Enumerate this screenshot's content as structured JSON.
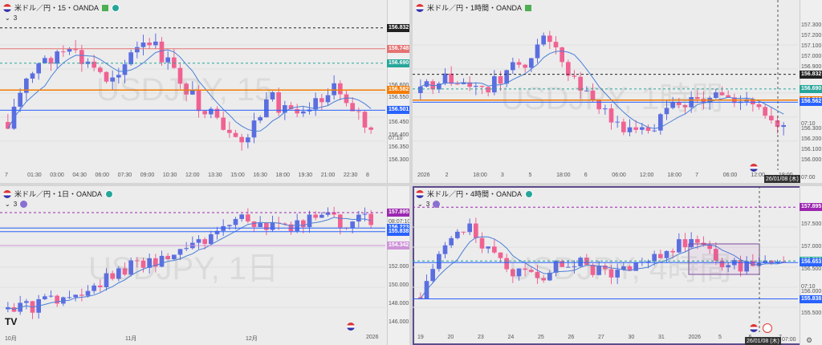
{
  "panels": {
    "tl": {
      "title": "米ドル／円・15・OANDA",
      "indicator": "3",
      "watermark": "USDJPY, 15",
      "y_ticks": [
        "156.832",
        "156.748",
        "156.690",
        "156.600",
        "156.582",
        "156.550",
        "156.501",
        "156.450",
        "156.400",
        "07:10",
        "156.350",
        "156.300"
      ],
      "x_ticks": [
        "7",
        "01:30",
        "03:00",
        "04:30",
        "06:00",
        "07:30",
        "09:00",
        "10:30",
        "12:00",
        "13:30",
        "15:00",
        "16:30",
        "18:00",
        "19:30",
        "21:00",
        "22:30",
        "8"
      ],
      "tags": [
        {
          "text": "156.832",
          "color": "#222222"
        },
        {
          "text": "156.748",
          "color": "#e57373"
        },
        {
          "text": "156.690",
          "color": "#26a69a"
        },
        {
          "text": "156.582",
          "color": "#f57c00"
        },
        {
          "text": "156.501",
          "color": "#2962ff"
        }
      ]
    },
    "tr": {
      "title": "米ドル／円・1時間・OANDA",
      "watermark": "USDJPY, 1時間",
      "y_ticks": [
        "157.300",
        "157.200",
        "157.100",
        "157.000",
        "156.900",
        "156.832",
        "156.700",
        "156.690",
        "156.582",
        "156.562",
        "07:10",
        "156.300",
        "156.200",
        "156.100",
        "156.000"
      ],
      "x_ticks": [
        "2026",
        "2",
        "18:00",
        "3",
        "5",
        "18:00",
        "6",
        "06:00",
        "12:00",
        "18:00",
        "7",
        "06:00",
        "12:00",
        "18:00"
      ],
      "date_label": "26/01/08 (木)",
      "time_label": "07:00",
      "tags": [
        {
          "text": "156.832",
          "color": "#222222"
        },
        {
          "text": "156.690",
          "color": "#26a69a"
        },
        {
          "text": "156.582",
          "color": "#f57c00"
        },
        {
          "text": "156.562",
          "color": "#2962ff"
        }
      ]
    },
    "bl": {
      "title": "米ドル／円・1日・OANDA",
      "indicator": "3",
      "watermark": "USDJPY, 1日",
      "y_ticks": [
        "157.895",
        "08:07:10",
        "156.223",
        "155.838",
        "154.342",
        "152.000",
        "150.000",
        "148.000",
        "146.000"
      ],
      "x_ticks": [
        "10月",
        "11月",
        "12月",
        "2026"
      ],
      "tags": [
        {
          "text": "157.895",
          "color": "#9c27b0"
        },
        {
          "text": "156.223",
          "color": "#2962ff"
        },
        {
          "text": "155.838",
          "color": "#2962ff"
        },
        {
          "text": "154.342",
          "color": "#ce93d8"
        }
      ]
    },
    "br": {
      "title": "米ドル／円・4時間・OANDA",
      "indicator": "3",
      "watermark": "USDJPY, 4時間",
      "y_ticks": [
        "157.895",
        "157.500",
        "157.000",
        "156.690",
        "156.653",
        "156.500",
        "07:10",
        "156.000",
        "155.838",
        "155.500"
      ],
      "x_ticks": [
        "19",
        "20",
        "23",
        "24",
        "25",
        "26",
        "27",
        "30",
        "31",
        "2026",
        "5",
        "6",
        "7"
      ],
      "date_label": "26/01/08 (木)",
      "time_label": "07:00",
      "tags": [
        {
          "text": "157.895",
          "color": "#9c27b0"
        },
        {
          "text": "156.690",
          "color": "#26a69a"
        },
        {
          "text": "156.653",
          "color": "#2962ff"
        },
        {
          "text": "155.838",
          "color": "#2962ff"
        }
      ]
    }
  },
  "chart_data": [
    {
      "type": "line",
      "symbol": "USDJPY",
      "timeframe": "15",
      "ylim": [
        156.28,
        156.86
      ],
      "levels": [
        156.832,
        156.748,
        156.69,
        156.582,
        156.501
      ]
    },
    {
      "type": "line",
      "symbol": "USDJPY",
      "timeframe": "1時間",
      "ylim": [
        155.95,
        157.35
      ],
      "levels": [
        156.832,
        156.69,
        156.582,
        156.562
      ]
    },
    {
      "type": "line",
      "symbol": "USDJPY",
      "timeframe": "1日",
      "ylim": [
        145.5,
        158.5
      ],
      "levels": [
        157.895,
        156.223,
        155.838,
        154.342
      ]
    },
    {
      "type": "line",
      "symbol": "USDJPY",
      "timeframe": "4時間",
      "ylim": [
        155.2,
        157.9
      ],
      "levels": [
        157.895,
        156.69,
        156.653,
        155.838
      ]
    }
  ],
  "colors": {
    "up": "#5b6ee0",
    "down": "#f06292",
    "ma": "#4a7fd8",
    "accent": "#5d4c8c"
  }
}
